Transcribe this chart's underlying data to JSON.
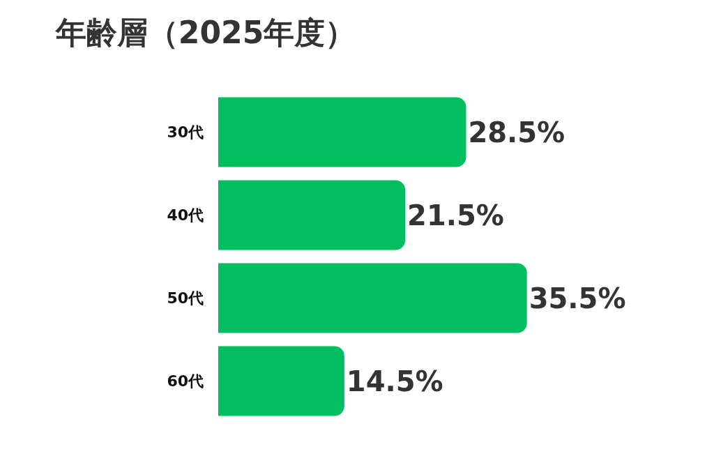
{
  "chart_data": {
    "type": "bar",
    "orientation": "horizontal",
    "title": "年齢層（2025年度）",
    "categories": [
      "30代",
      "40代",
      "50代",
      "60代"
    ],
    "values": [
      28.5,
      21.5,
      35.5,
      14.5
    ],
    "value_labels": [
      "28.5%",
      "21.5%",
      "35.5%",
      "14.5%"
    ],
    "color": "#00be5f",
    "tick_labels": "y",
    "legend": false
  }
}
